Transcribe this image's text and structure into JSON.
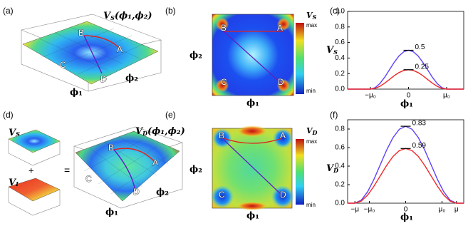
{
  "panels": {
    "a": {
      "label": "(a)",
      "title": {
        "v": "V",
        "sub": "S",
        "args": "(ϕ₁,ϕ₂)"
      },
      "points": [
        "B",
        "A",
        "C",
        "D"
      ],
      "x_axis": "ϕ₁",
      "y_axis": "ϕ₂"
    },
    "b": {
      "label": "(b)",
      "points": [
        "B",
        "A",
        "C",
        "D"
      ],
      "x_axis": "ϕ₁",
      "y_axis": "ϕ₂",
      "colorbar": {
        "v": "V",
        "sub": "S",
        "max": "max",
        "min": "min"
      }
    },
    "d": {
      "label": "(d)",
      "terms": [
        {
          "v": "V",
          "sub": "S"
        },
        {
          "v": "V",
          "sub": "I"
        }
      ],
      "plus": "+",
      "equals": "=",
      "title": {
        "v": "V",
        "sub": "D",
        "args": "(ϕ₁,ϕ₂)"
      },
      "points": [
        "B",
        "A",
        "C",
        "D"
      ],
      "x_axis": "ϕ₁",
      "y_axis": "ϕ₂"
    },
    "e": {
      "label": "(e)",
      "points": [
        "B",
        "A",
        "C",
        "D"
      ],
      "x_axis": "ϕ₁",
      "y_axis": "ϕ₂",
      "colorbar": {
        "v": "V",
        "sub": "D",
        "max": "max",
        "min": "min"
      }
    }
  },
  "chart_data": [
    {
      "type": "line",
      "panel": "(c)",
      "xlabel": "ϕ₁",
      "ylabel": {
        "v": "V",
        "sub": "S"
      },
      "x": [
        -1.6,
        -1,
        -0.875,
        -0.75,
        -0.625,
        -0.5,
        -0.375,
        -0.25,
        -0.125,
        0,
        0.125,
        0.25,
        0.375,
        0.5,
        0.625,
        0.75,
        0.875,
        1,
        1.45
      ],
      "series": [
        {
          "color": "#6040f8",
          "values": [
            0,
            0,
            0.019,
            0.073,
            0.154,
            0.25,
            0.346,
            0.427,
            0.481,
            0.5,
            0.481,
            0.427,
            0.346,
            0.25,
            0.154,
            0.073,
            0.019,
            0,
            0
          ]
        },
        {
          "color": "#f02828",
          "values": [
            0,
            0,
            0.01,
            0.037,
            0.077,
            0.125,
            0.173,
            0.213,
            0.24,
            0.25,
            0.24,
            0.213,
            0.173,
            0.125,
            0.077,
            0.037,
            0.01,
            0,
            0
          ]
        }
      ],
      "annotations": [
        {
          "label": "0.5",
          "x": 0,
          "y": 0.5
        },
        {
          "label": "0.25",
          "x": 0,
          "y": 0.25
        }
      ],
      "xlim": [
        -1.6,
        1.45
      ],
      "ylim": [
        0,
        1
      ],
      "xticks": [
        {
          "value": -1,
          "label": "−μ₀"
        },
        0,
        {
          "value": 1,
          "label": "μ₀"
        }
      ],
      "yticks": [
        {
          "value": 0,
          "label": "0.0"
        },
        0.2,
        0.4,
        0.6,
        0.8,
        {
          "value": 1,
          "label": "1.0"
        }
      ]
    },
    {
      "type": "line",
      "panel": "(f)",
      "xlabel": "ϕ₁",
      "ylabel": {
        "v": "V",
        "sub": "D"
      },
      "x": [
        -1.6,
        -1.4,
        -1.225,
        -1.05,
        -0.875,
        -0.7,
        -0.525,
        -0.35,
        -0.175,
        0,
        0.175,
        0.35,
        0.525,
        0.7,
        0.875,
        1.05,
        1.225,
        1.4,
        1.6
      ],
      "series": [
        {
          "color": "#6040f8",
          "values": [
            0,
            0,
            0.032,
            0.122,
            0.256,
            0.415,
            0.574,
            0.708,
            0.798,
            0.83,
            0.798,
            0.708,
            0.574,
            0.415,
            0.256,
            0.122,
            0.032,
            0,
            0
          ]
        },
        {
          "color": "#f02828",
          "values": [
            0,
            0,
            0.022,
            0.086,
            0.182,
            0.295,
            0.408,
            0.504,
            0.568,
            0.59,
            0.568,
            0.504,
            0.408,
            0.295,
            0.182,
            0.086,
            0.022,
            0,
            0
          ]
        }
      ],
      "annotations": [
        {
          "label": "0.83",
          "x": 0,
          "y": 0.83
        },
        {
          "label": "0.59",
          "x": 0,
          "y": 0.59
        }
      ],
      "xlim": [
        -1.6,
        1.6
      ],
      "ylim": [
        0,
        0.9
      ],
      "xticks": [
        {
          "value": -1.4,
          "label": "−μ"
        },
        {
          "value": -1,
          "label": "−μ₀"
        },
        0,
        {
          "value": 1,
          "label": "μ₀"
        },
        {
          "value": 1.4,
          "label": "μ"
        }
      ],
      "yticks": [
        {
          "value": 0,
          "label": "0.0"
        },
        0.2,
        0.4,
        0.6,
        0.8
      ]
    }
  ]
}
